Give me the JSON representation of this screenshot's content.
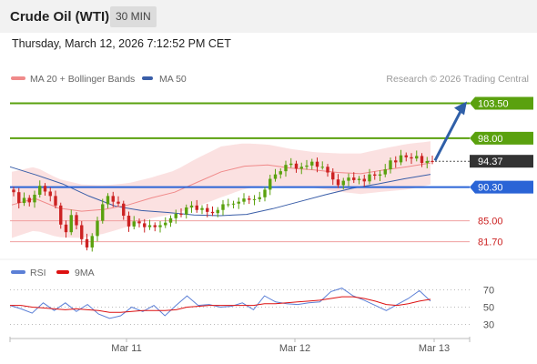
{
  "header": {
    "title": "Crude Oil (WTI)",
    "timeframe": "30 MIN"
  },
  "datetime": "Thursday, March 12, 2026 7:12:52 PM CET",
  "legend": {
    "ma20": "MA 20 + Bollinger Bands",
    "ma50": "MA 50"
  },
  "copyright": "Research © 2026 Trading Central",
  "colors": {
    "bullish": "#5aa10e",
    "bearish": "#cc2222",
    "current": "#333333",
    "support": "#2a64d6",
    "band": "#f8c8c8",
    "ma20": "#f08a8a",
    "ma50": "#3a5ea8",
    "rsi": "#5b7fd6",
    "rsi_ma": "#dd1111"
  },
  "chart_data": [
    {
      "type": "candlestick",
      "ylim": [
        79.5,
        106
      ],
      "x_ticks": [
        "Mar 11",
        "Mar 12",
        "Mar 13"
      ],
      "levels": [
        {
          "value": 103.5,
          "label": "103.50",
          "kind": "resistance",
          "color": "#5aa10e"
        },
        {
          "value": 98.0,
          "label": "98.00",
          "kind": "resistance",
          "color": "#5aa10e"
        },
        {
          "value": 94.37,
          "label": "94.37",
          "kind": "current",
          "color": "#333333"
        },
        {
          "value": 90.3,
          "label": "90.30",
          "kind": "pivot",
          "color": "#2a64d6"
        },
        {
          "value": 85.0,
          "label": "85.00",
          "kind": "support",
          "color": "#cc2222"
        },
        {
          "value": 81.7,
          "label": "81.70",
          "kind": "support",
          "color": "#cc2222"
        }
      ],
      "forecast": {
        "from": 94.5,
        "to": 103.5
      },
      "closes": [
        89.5,
        87.8,
        88.6,
        87.9,
        89.1,
        90.5,
        89.6,
        88.9,
        87.4,
        84.4,
        83.2,
        85.9,
        84.3,
        82.1,
        80.8,
        82.6,
        85.0,
        87.6,
        88.9,
        88.0,
        87.7,
        85.8,
        84.1,
        84.9,
        84.6,
        84.0,
        84.3,
        84.0,
        84.3,
        84.7,
        85.4,
        86.1,
        86.0,
        87.1,
        87.4,
        86.7,
        87.0,
        86.4,
        86.2,
        86.7,
        87.6,
        87.6,
        87.7,
        88.0,
        88.5,
        88.3,
        88.4,
        88.7,
        89.9,
        91.6,
        92.3,
        92.8,
        93.8,
        94.0,
        93.2,
        93.5,
        93.7,
        94.3,
        93.5,
        93.5,
        92.6,
        91.5,
        90.6,
        91.3,
        91.8,
        91.4,
        91.6,
        91.2,
        92.3,
        92.1,
        92.3,
        93.1,
        94.5,
        94.2,
        95.3,
        95.0,
        94.8,
        95.2,
        94.1,
        94.4,
        94.37
      ],
      "ma20": [
        87.5,
        88.5,
        87.0,
        86.5,
        86.8,
        87.5,
        88.6,
        89.5,
        91.1,
        92.7,
        93.6,
        93.8,
        93.3,
        93.0,
        92.6,
        92.4,
        93.0,
        93.5,
        94.1
      ],
      "ma50": [
        93.5,
        92.2,
        90.8,
        88.9,
        87.3,
        86.6,
        86.3,
        85.9,
        85.8,
        86.0,
        86.9,
        88.0,
        89.1,
        90.1,
        90.8,
        91.6,
        92.3
      ]
    },
    {
      "type": "line",
      "legend": [
        "RSI",
        "9MA"
      ],
      "ylim": [
        20,
        80
      ],
      "y_ticks": [
        70,
        50,
        30
      ],
      "rsi": [
        52,
        48,
        43,
        55,
        46,
        55,
        45,
        53,
        42,
        37,
        40,
        50,
        45,
        52,
        40,
        52,
        63,
        52,
        53,
        50,
        51,
        55,
        47,
        63,
        56,
        54,
        53,
        55,
        56,
        68,
        72,
        63,
        58,
        52,
        46,
        53,
        60,
        69,
        57
      ],
      "rsi_ma": [
        52,
        52,
        50,
        49,
        48,
        47,
        48,
        47,
        46,
        44,
        44,
        45,
        46,
        46,
        46,
        47,
        50,
        51,
        52,
        52,
        52,
        52,
        52,
        54,
        54,
        55,
        56,
        57,
        58,
        60,
        62,
        62,
        60,
        57,
        53,
        52,
        54,
        57,
        59
      ]
    }
  ]
}
